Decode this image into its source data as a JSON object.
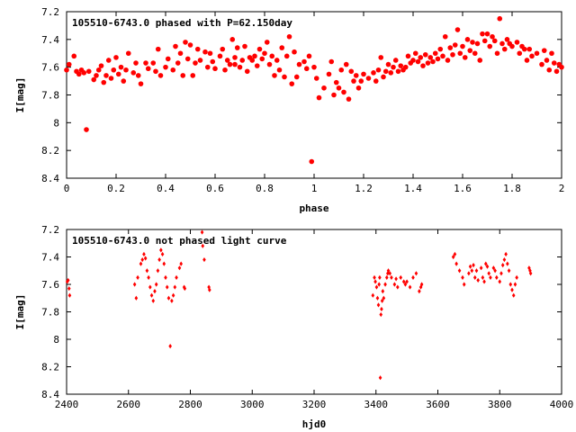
{
  "chart_data": [
    {
      "type": "scatter",
      "title": "105510-6743.0 phased with P=62.150day",
      "xlabel": "phase",
      "ylabel": "I[mag]",
      "xlim": [
        0,
        2
      ],
      "ylim": [
        8.4,
        7.2
      ],
      "y_inverted": true,
      "xticks": [
        "0",
        "0.2",
        "0.4",
        "0.6",
        "0.8",
        "1",
        "1.2",
        "1.4",
        "1.6",
        "1.8",
        "2"
      ],
      "xtick_values": [
        0,
        0.2,
        0.4,
        0.6,
        0.8,
        1.0,
        1.2,
        1.4,
        1.6,
        1.8,
        2.0
      ],
      "yticks": [
        "7.2",
        "7.4",
        "7.6",
        "7.8",
        "8",
        "8.2",
        "8.4"
      ],
      "ytick_values": [
        7.2,
        7.4,
        7.6,
        7.8,
        8.0,
        8.2,
        8.4
      ],
      "marker_color": "#ff0000",
      "grid": false,
      "points": [
        [
          0.0,
          7.62
        ],
        [
          0.01,
          7.58
        ],
        [
          0.03,
          7.52
        ],
        [
          0.04,
          7.63
        ],
        [
          0.05,
          7.65
        ],
        [
          0.06,
          7.62
        ],
        [
          0.07,
          7.64
        ],
        [
          0.08,
          8.05
        ],
        [
          0.09,
          7.63
        ],
        [
          0.11,
          7.69
        ],
        [
          0.12,
          7.66
        ],
        [
          0.13,
          7.62
        ],
        [
          0.14,
          7.59
        ],
        [
          0.15,
          7.71
        ],
        [
          0.16,
          7.66
        ],
        [
          0.17,
          7.55
        ],
        [
          0.18,
          7.68
        ],
        [
          0.19,
          7.62
        ],
        [
          0.2,
          7.53
        ],
        [
          0.21,
          7.65
        ],
        [
          0.22,
          7.6
        ],
        [
          0.23,
          7.7
        ],
        [
          0.24,
          7.62
        ],
        [
          0.25,
          7.5
        ],
        [
          0.27,
          7.64
        ],
        [
          0.28,
          7.57
        ],
        [
          0.29,
          7.66
        ],
        [
          0.3,
          7.72
        ],
        [
          0.32,
          7.57
        ],
        [
          0.33,
          7.61
        ],
        [
          0.35,
          7.57
        ],
        [
          0.36,
          7.63
        ],
        [
          0.37,
          7.47
        ],
        [
          0.38,
          7.66
        ],
        [
          0.4,
          7.6
        ],
        [
          0.41,
          7.54
        ],
        [
          0.43,
          7.62
        ],
        [
          0.44,
          7.45
        ],
        [
          0.45,
          7.57
        ],
        [
          0.46,
          7.5
        ],
        [
          0.47,
          7.66
        ],
        [
          0.48,
          7.42
        ],
        [
          0.49,
          7.54
        ],
        [
          0.5,
          7.44
        ],
        [
          0.51,
          7.66
        ],
        [
          0.52,
          7.57
        ],
        [
          0.53,
          7.47
        ],
        [
          0.54,
          7.55
        ],
        [
          0.56,
          7.49
        ],
        [
          0.57,
          7.6
        ],
        [
          0.58,
          7.5
        ],
        [
          0.59,
          7.56
        ],
        [
          0.6,
          7.61
        ],
        [
          0.62,
          7.52
        ],
        [
          0.63,
          7.47
        ],
        [
          0.64,
          7.62
        ],
        [
          0.65,
          7.55
        ],
        [
          0.66,
          7.58
        ],
        [
          0.67,
          7.4
        ],
        [
          0.68,
          7.53
        ],
        [
          0.68,
          7.58
        ],
        [
          0.69,
          7.46
        ],
        [
          0.7,
          7.6
        ],
        [
          0.71,
          7.55
        ],
        [
          0.72,
          7.45
        ],
        [
          0.73,
          7.63
        ],
        [
          0.74,
          7.53
        ],
        [
          0.75,
          7.55
        ],
        [
          0.76,
          7.52
        ],
        [
          0.77,
          7.59
        ],
        [
          0.78,
          7.47
        ],
        [
          0.79,
          7.54
        ],
        [
          0.8,
          7.5
        ],
        [
          0.81,
          7.42
        ],
        [
          0.82,
          7.58
        ],
        [
          0.83,
          7.52
        ],
        [
          0.84,
          7.66
        ],
        [
          0.85,
          7.55
        ],
        [
          0.86,
          7.62
        ],
        [
          0.87,
          7.46
        ],
        [
          0.88,
          7.67
        ],
        [
          0.89,
          7.52
        ],
        [
          0.9,
          7.38
        ],
        [
          0.91,
          7.72
        ],
        [
          0.92,
          7.49
        ],
        [
          0.93,
          7.67
        ],
        [
          0.94,
          7.58
        ],
        [
          0.96,
          7.56
        ],
        [
          0.97,
          7.61
        ],
        [
          0.98,
          7.52
        ],
        [
          0.99,
          8.28
        ],
        [
          1.0,
          7.6
        ],
        [
          1.01,
          7.68
        ],
        [
          1.02,
          7.82
        ],
        [
          1.04,
          7.75
        ],
        [
          1.06,
          7.65
        ],
        [
          1.07,
          7.56
        ],
        [
          1.08,
          7.8
        ],
        [
          1.09,
          7.71
        ],
        [
          1.1,
          7.75
        ],
        [
          1.11,
          7.62
        ],
        [
          1.12,
          7.78
        ],
        [
          1.13,
          7.58
        ],
        [
          1.14,
          7.83
        ],
        [
          1.15,
          7.63
        ],
        [
          1.16,
          7.7
        ],
        [
          1.17,
          7.66
        ],
        [
          1.18,
          7.75
        ],
        [
          1.19,
          7.7
        ],
        [
          1.2,
          7.65
        ],
        [
          1.22,
          7.68
        ],
        [
          1.24,
          7.64
        ],
        [
          1.25,
          7.7
        ],
        [
          1.26,
          7.62
        ],
        [
          1.27,
          7.53
        ],
        [
          1.28,
          7.67
        ],
        [
          1.29,
          7.63
        ],
        [
          1.3,
          7.58
        ],
        [
          1.31,
          7.64
        ],
        [
          1.32,
          7.6
        ],
        [
          1.33,
          7.55
        ],
        [
          1.34,
          7.63
        ],
        [
          1.35,
          7.59
        ],
        [
          1.36,
          7.62
        ],
        [
          1.37,
          7.6
        ],
        [
          1.38,
          7.52
        ],
        [
          1.39,
          7.57
        ],
        [
          1.4,
          7.55
        ],
        [
          1.41,
          7.5
        ],
        [
          1.42,
          7.56
        ],
        [
          1.43,
          7.53
        ],
        [
          1.44,
          7.59
        ],
        [
          1.45,
          7.51
        ],
        [
          1.46,
          7.57
        ],
        [
          1.47,
          7.53
        ],
        [
          1.48,
          7.56
        ],
        [
          1.49,
          7.5
        ],
        [
          1.5,
          7.54
        ],
        [
          1.51,
          7.47
        ],
        [
          1.52,
          7.52
        ],
        [
          1.53,
          7.38
        ],
        [
          1.54,
          7.55
        ],
        [
          1.55,
          7.46
        ],
        [
          1.56,
          7.51
        ],
        [
          1.57,
          7.44
        ],
        [
          1.58,
          7.33
        ],
        [
          1.59,
          7.5
        ],
        [
          1.6,
          7.45
        ],
        [
          1.61,
          7.53
        ],
        [
          1.62,
          7.4
        ],
        [
          1.63,
          7.48
        ],
        [
          1.64,
          7.42
        ],
        [
          1.65,
          7.5
        ],
        [
          1.66,
          7.43
        ],
        [
          1.67,
          7.55
        ],
        [
          1.68,
          7.36
        ],
        [
          1.69,
          7.41
        ],
        [
          1.7,
          7.36
        ],
        [
          1.71,
          7.45
        ],
        [
          1.72,
          7.38
        ],
        [
          1.73,
          7.41
        ],
        [
          1.74,
          7.5
        ],
        [
          1.75,
          7.25
        ],
        [
          1.76,
          7.43
        ],
        [
          1.77,
          7.47
        ],
        [
          1.78,
          7.4
        ],
        [
          1.79,
          7.43
        ],
        [
          1.8,
          7.45
        ],
        [
          1.82,
          7.42
        ],
        [
          1.83,
          7.5
        ],
        [
          1.84,
          7.45
        ],
        [
          1.85,
          7.47
        ],
        [
          1.86,
          7.55
        ],
        [
          1.87,
          7.47
        ],
        [
          1.88,
          7.52
        ],
        [
          1.9,
          7.5
        ],
        [
          1.92,
          7.58
        ],
        [
          1.93,
          7.48
        ],
        [
          1.94,
          7.55
        ],
        [
          1.95,
          7.62
        ],
        [
          1.96,
          7.5
        ],
        [
          1.97,
          7.57
        ],
        [
          1.98,
          7.63
        ],
        [
          1.99,
          7.58
        ],
        [
          2.0,
          7.6
        ]
      ]
    },
    {
      "type": "scatter",
      "title": "105510-6743.0 not phased light curve",
      "xlabel": "hjd0",
      "ylabel": "I[mag]",
      "xlim": [
        2400,
        4000
      ],
      "ylim": [
        8.4,
        7.2
      ],
      "y_inverted": true,
      "xticks": [
        "2400",
        "2600",
        "2800",
        "3000",
        "3200",
        "3400",
        "3600",
        "3800",
        "4000"
      ],
      "xtick_values": [
        2400,
        2600,
        2800,
        3000,
        3200,
        3400,
        3600,
        3800,
        4000
      ],
      "yticks": [
        "7.2",
        "7.4",
        "7.6",
        "7.8",
        "8",
        "8.2",
        "8.4"
      ],
      "ytick_values": [
        7.2,
        7.4,
        7.6,
        7.8,
        8.0,
        8.2,
        8.4
      ],
      "marker_color": "#ff0000",
      "grid": false,
      "points": [
        [
          2402,
          7.58
        ],
        [
          2405,
          7.57
        ],
        [
          2408,
          7.63
        ],
        [
          2410,
          7.68
        ],
        [
          2620,
          7.6
        ],
        [
          2625,
          7.7
        ],
        [
          2630,
          7.55
        ],
        [
          2640,
          7.45
        ],
        [
          2645,
          7.42
        ],
        [
          2650,
          7.38
        ],
        [
          2655,
          7.41
        ],
        [
          2660,
          7.5
        ],
        [
          2665,
          7.55
        ],
        [
          2670,
          7.62
        ],
        [
          2675,
          7.68
        ],
        [
          2680,
          7.72
        ],
        [
          2685,
          7.65
        ],
        [
          2690,
          7.6
        ],
        [
          2695,
          7.5
        ],
        [
          2700,
          7.42
        ],
        [
          2705,
          7.35
        ],
        [
          2710,
          7.38
        ],
        [
          2715,
          7.45
        ],
        [
          2720,
          7.55
        ],
        [
          2725,
          7.62
        ],
        [
          2730,
          7.7
        ],
        [
          2735,
          8.05
        ],
        [
          2740,
          7.72
        ],
        [
          2745,
          7.68
        ],
        [
          2750,
          7.62
        ],
        [
          2755,
          7.55
        ],
        [
          2765,
          7.48
        ],
        [
          2770,
          7.45
        ],
        [
          2780,
          7.62
        ],
        [
          2782,
          7.63
        ],
        [
          2838,
          7.22
        ],
        [
          2840,
          7.32
        ],
        [
          2845,
          7.42
        ],
        [
          2860,
          7.62
        ],
        [
          2862,
          7.64
        ],
        [
          3390,
          7.68
        ],
        [
          3395,
          7.55
        ],
        [
          3398,
          7.58
        ],
        [
          3402,
          7.62
        ],
        [
          3405,
          7.7
        ],
        [
          3408,
          7.75
        ],
        [
          3410,
          7.6
        ],
        [
          3412,
          7.55
        ],
        [
          3414,
          8.28
        ],
        [
          3416,
          7.82
        ],
        [
          3418,
          7.78
        ],
        [
          3420,
          7.72
        ],
        [
          3422,
          7.65
        ],
        [
          3425,
          7.7
        ],
        [
          3430,
          7.6
        ],
        [
          3435,
          7.55
        ],
        [
          3438,
          7.52
        ],
        [
          3440,
          7.5
        ],
        [
          3445,
          7.52
        ],
        [
          3450,
          7.55
        ],
        [
          3460,
          7.6
        ],
        [
          3465,
          7.56
        ],
        [
          3470,
          7.62
        ],
        [
          3480,
          7.55
        ],
        [
          3490,
          7.58
        ],
        [
          3495,
          7.6
        ],
        [
          3500,
          7.58
        ],
        [
          3510,
          7.62
        ],
        [
          3520,
          7.55
        ],
        [
          3530,
          7.52
        ],
        [
          3540,
          7.65
        ],
        [
          3545,
          7.62
        ],
        [
          3548,
          7.6
        ],
        [
          3650,
          7.4
        ],
        [
          3655,
          7.38
        ],
        [
          3660,
          7.45
        ],
        [
          3670,
          7.5
        ],
        [
          3680,
          7.55
        ],
        [
          3685,
          7.6
        ],
        [
          3700,
          7.52
        ],
        [
          3705,
          7.47
        ],
        [
          3710,
          7.5
        ],
        [
          3715,
          7.46
        ],
        [
          3720,
          7.55
        ],
        [
          3725,
          7.5
        ],
        [
          3730,
          7.57
        ],
        [
          3740,
          7.48
        ],
        [
          3745,
          7.55
        ],
        [
          3750,
          7.58
        ],
        [
          3755,
          7.45
        ],
        [
          3760,
          7.47
        ],
        [
          3765,
          7.52
        ],
        [
          3770,
          7.55
        ],
        [
          3780,
          7.48
        ],
        [
          3785,
          7.5
        ],
        [
          3790,
          7.55
        ],
        [
          3800,
          7.58
        ],
        [
          3805,
          7.52
        ],
        [
          3810,
          7.46
        ],
        [
          3815,
          7.42
        ],
        [
          3820,
          7.38
        ],
        [
          3825,
          7.45
        ],
        [
          3830,
          7.5
        ],
        [
          3835,
          7.6
        ],
        [
          3840,
          7.64
        ],
        [
          3845,
          7.68
        ],
        [
          3850,
          7.6
        ],
        [
          3855,
          7.55
        ],
        [
          3895,
          7.48
        ],
        [
          3898,
          7.5
        ],
        [
          3900,
          7.52
        ]
      ]
    }
  ]
}
